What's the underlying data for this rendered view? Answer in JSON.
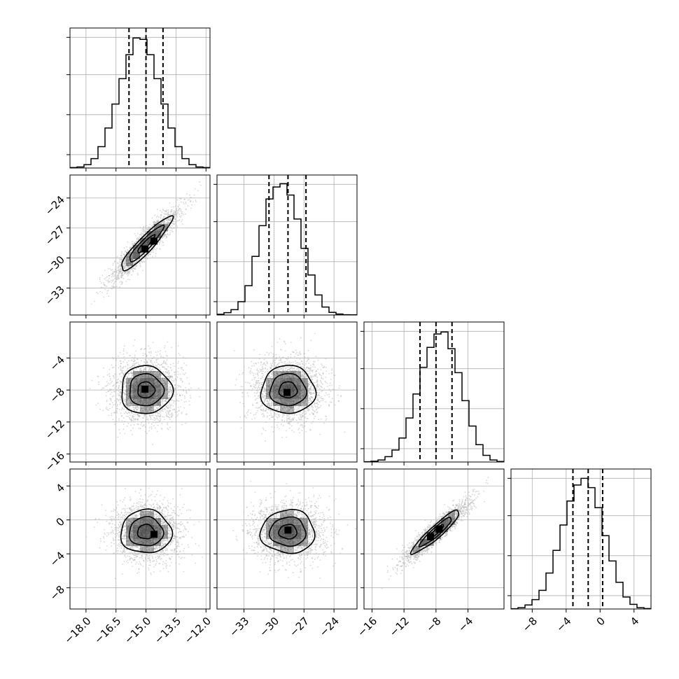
{
  "chart_data": {
    "type": "corner",
    "parameters": [
      {
        "range": [
          -18.8,
          -11.8
        ],
        "ticks": [
          -18.0,
          -16.5,
          -15.0,
          -13.5,
          -12.0
        ],
        "tick_labels": [
          "−18.0",
          "−16.5",
          "−15.0",
          "−13.5",
          "−12.0"
        ],
        "quantiles": [
          -15.85,
          -15.0,
          -14.15
        ],
        "hist": {
          "bin_start": -18.8,
          "bin_width": 0.35,
          "counts": [
            0.003,
            0.008,
            0.025,
            0.07,
            0.16,
            0.3,
            0.48,
            0.67,
            0.85,
            0.975,
            0.965,
            0.85,
            0.67,
            0.48,
            0.3,
            0.16,
            0.07,
            0.025,
            0.008,
            0.003
          ]
        }
      },
      {
        "range": [
          -35.7,
          -21.7
        ],
        "ticks": [
          -33,
          -30,
          -27,
          -24
        ],
        "tick_labels": [
          "−33",
          "−30",
          "−27",
          "−24"
        ],
        "quantiles": [
          -30.5,
          -28.6,
          -26.8
        ],
        "hist": {
          "bin_start": -35.7,
          "bin_width": 0.7,
          "counts": [
            0.005,
            0.018,
            0.04,
            0.1,
            0.22,
            0.44,
            0.67,
            0.87,
            0.96,
            0.985,
            0.9,
            0.72,
            0.5,
            0.3,
            0.15,
            0.06,
            0.02,
            0.007,
            0.002,
            0.001
          ]
        }
      },
      {
        "range": [
          -17.0,
          0.5
        ],
        "ticks": [
          -16,
          -12,
          -8,
          -4
        ],
        "tick_labels": [
          "−16",
          "−12",
          "−8",
          "−4"
        ],
        "quantiles": [
          -10.0,
          -8.0,
          -6.0
        ],
        "hist": {
          "bin_start": -17.0,
          "bin_width": 0.875,
          "counts": [
            0.002,
            0.006,
            0.015,
            0.04,
            0.09,
            0.18,
            0.33,
            0.51,
            0.71,
            0.86,
            0.96,
            0.975,
            0.85,
            0.67,
            0.46,
            0.27,
            0.13,
            0.05,
            0.015,
            0.004
          ]
        }
      },
      {
        "range": [
          -10.5,
          6.0
        ],
        "ticks": [
          -8,
          -4,
          0,
          4
        ],
        "tick_labels": [
          "−8",
          "−4",
          "0",
          "4"
        ],
        "quantiles": [
          -3.2,
          -1.4,
          0.3
        ],
        "hist": {
          "bin_start": -10.5,
          "bin_width": 0.825,
          "counts": [
            0.002,
            0.01,
            0.03,
            0.07,
            0.14,
            0.27,
            0.44,
            0.63,
            0.81,
            0.93,
            0.98,
            0.91,
            0.76,
            0.55,
            0.36,
            0.2,
            0.09,
            0.035,
            0.01,
            0.003
          ]
        }
      }
    ],
    "histogram_ylim": [
      0,
      1.05
    ],
    "histogram_yticks": [
      0.1,
      0.4,
      0.7,
      0.98
    ],
    "pairs": [
      {
        "row": 1,
        "col": 0,
        "mean": [
          -15.0,
          -28.6
        ],
        "sd": [
          0.85,
          1.8
        ],
        "corr": 0.92,
        "peaks": [
          [
            -15.05,
            -29.1
          ],
          [
            -14.6,
            -28.3
          ]
        ]
      },
      {
        "row": 2,
        "col": 0,
        "mean": [
          -15.0,
          -8.0
        ],
        "sd": [
          0.85,
          2.0
        ],
        "corr": 0.0,
        "peaks": [
          [
            -15.05,
            -7.9
          ]
        ]
      },
      {
        "row": 2,
        "col": 1,
        "mean": [
          -28.6,
          -8.0
        ],
        "sd": [
          1.8,
          2.0
        ],
        "corr": 0.0,
        "peaks": [
          [
            -28.7,
            -8.3
          ]
        ]
      },
      {
        "row": 3,
        "col": 0,
        "mean": [
          -15.0,
          -1.4
        ],
        "sd": [
          0.85,
          1.7
        ],
        "corr": 0.0,
        "peaks": [
          [
            -14.6,
            -1.7
          ]
        ]
      },
      {
        "row": 3,
        "col": 1,
        "mean": [
          -28.6,
          -1.4
        ],
        "sd": [
          1.8,
          1.7
        ],
        "corr": 0.0,
        "peaks": [
          [
            -28.6,
            -1.2
          ]
        ]
      },
      {
        "row": 3,
        "col": 2,
        "mean": [
          -8.0,
          -1.4
        ],
        "sd": [
          2.0,
          1.7
        ],
        "corr": 0.93,
        "peaks": [
          [
            -8.7,
            -2.0
          ],
          [
            -7.6,
            -1.1
          ]
        ]
      }
    ],
    "grid": true,
    "line_color": "#000000",
    "point_color": "#b4b4b4",
    "density_color": "#000000"
  }
}
